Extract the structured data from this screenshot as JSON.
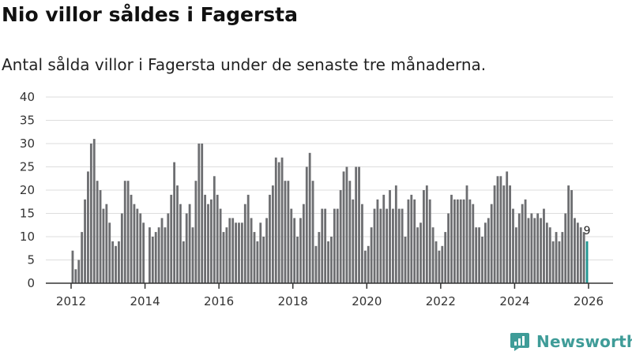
{
  "header": {
    "title": "Nio villor såldes i Fagersta",
    "subtitle": "Antal sålda villor i Fagersta under de senaste tre månaderna."
  },
  "brand": {
    "name": "Newsworthy",
    "color": "#3f9c98"
  },
  "chart_data": {
    "type": "bar",
    "title": "Nio villor såldes i Fagersta",
    "subtitle": "Antal sålda villor i Fagersta under de senaste tre månaderna.",
    "x_unit": "month",
    "start": "2012-01",
    "end": "2025-12",
    "ylim": [
      0,
      40
    ],
    "yticks": [
      0,
      5,
      10,
      15,
      20,
      25,
      30,
      35,
      40
    ],
    "xtick_labels": [
      "2012",
      "2014",
      "2016",
      "2018",
      "2020",
      "2022",
      "2024",
      "2026"
    ],
    "grid": true,
    "bar_color": "#6d6e71",
    "highlight_color": "#1f9590",
    "highlight_label": "9",
    "values": [
      7,
      3,
      5,
      11,
      18,
      24,
      30,
      31,
      22,
      20,
      16,
      17,
      13,
      9,
      8,
      9,
      15,
      22,
      22,
      19,
      17,
      16,
      15,
      13,
      0,
      12,
      10,
      11,
      12,
      14,
      12,
      15,
      19,
      26,
      21,
      17,
      9,
      15,
      17,
      12,
      22,
      30,
      30,
      19,
      17,
      18,
      23,
      19,
      16,
      11,
      12,
      14,
      14,
      13,
      13,
      13,
      17,
      19,
      14,
      11,
      9,
      13,
      10,
      14,
      19,
      21,
      27,
      26,
      27,
      22,
      22,
      16,
      14,
      10,
      14,
      17,
      25,
      28,
      22,
      8,
      11,
      16,
      16,
      9,
      10,
      16,
      16,
      20,
      24,
      25,
      22,
      18,
      25,
      25,
      17,
      7,
      8,
      12,
      16,
      18,
      16,
      19,
      16,
      20,
      16,
      21,
      16,
      16,
      10,
      18,
      19,
      18,
      12,
      13,
      20,
      21,
      18,
      12,
      9,
      7,
      8,
      11,
      15,
      19,
      18,
      18,
      18,
      18,
      21,
      18,
      17,
      12,
      12,
      10,
      13,
      14,
      17,
      21,
      23,
      23,
      21,
      24,
      21,
      16,
      12,
      15,
      17,
      18,
      14,
      15,
      14,
      15,
      14,
      16,
      13,
      12,
      9,
      11,
      9,
      11,
      15,
      21,
      20,
      14,
      13,
      12,
      11,
      9
    ]
  }
}
